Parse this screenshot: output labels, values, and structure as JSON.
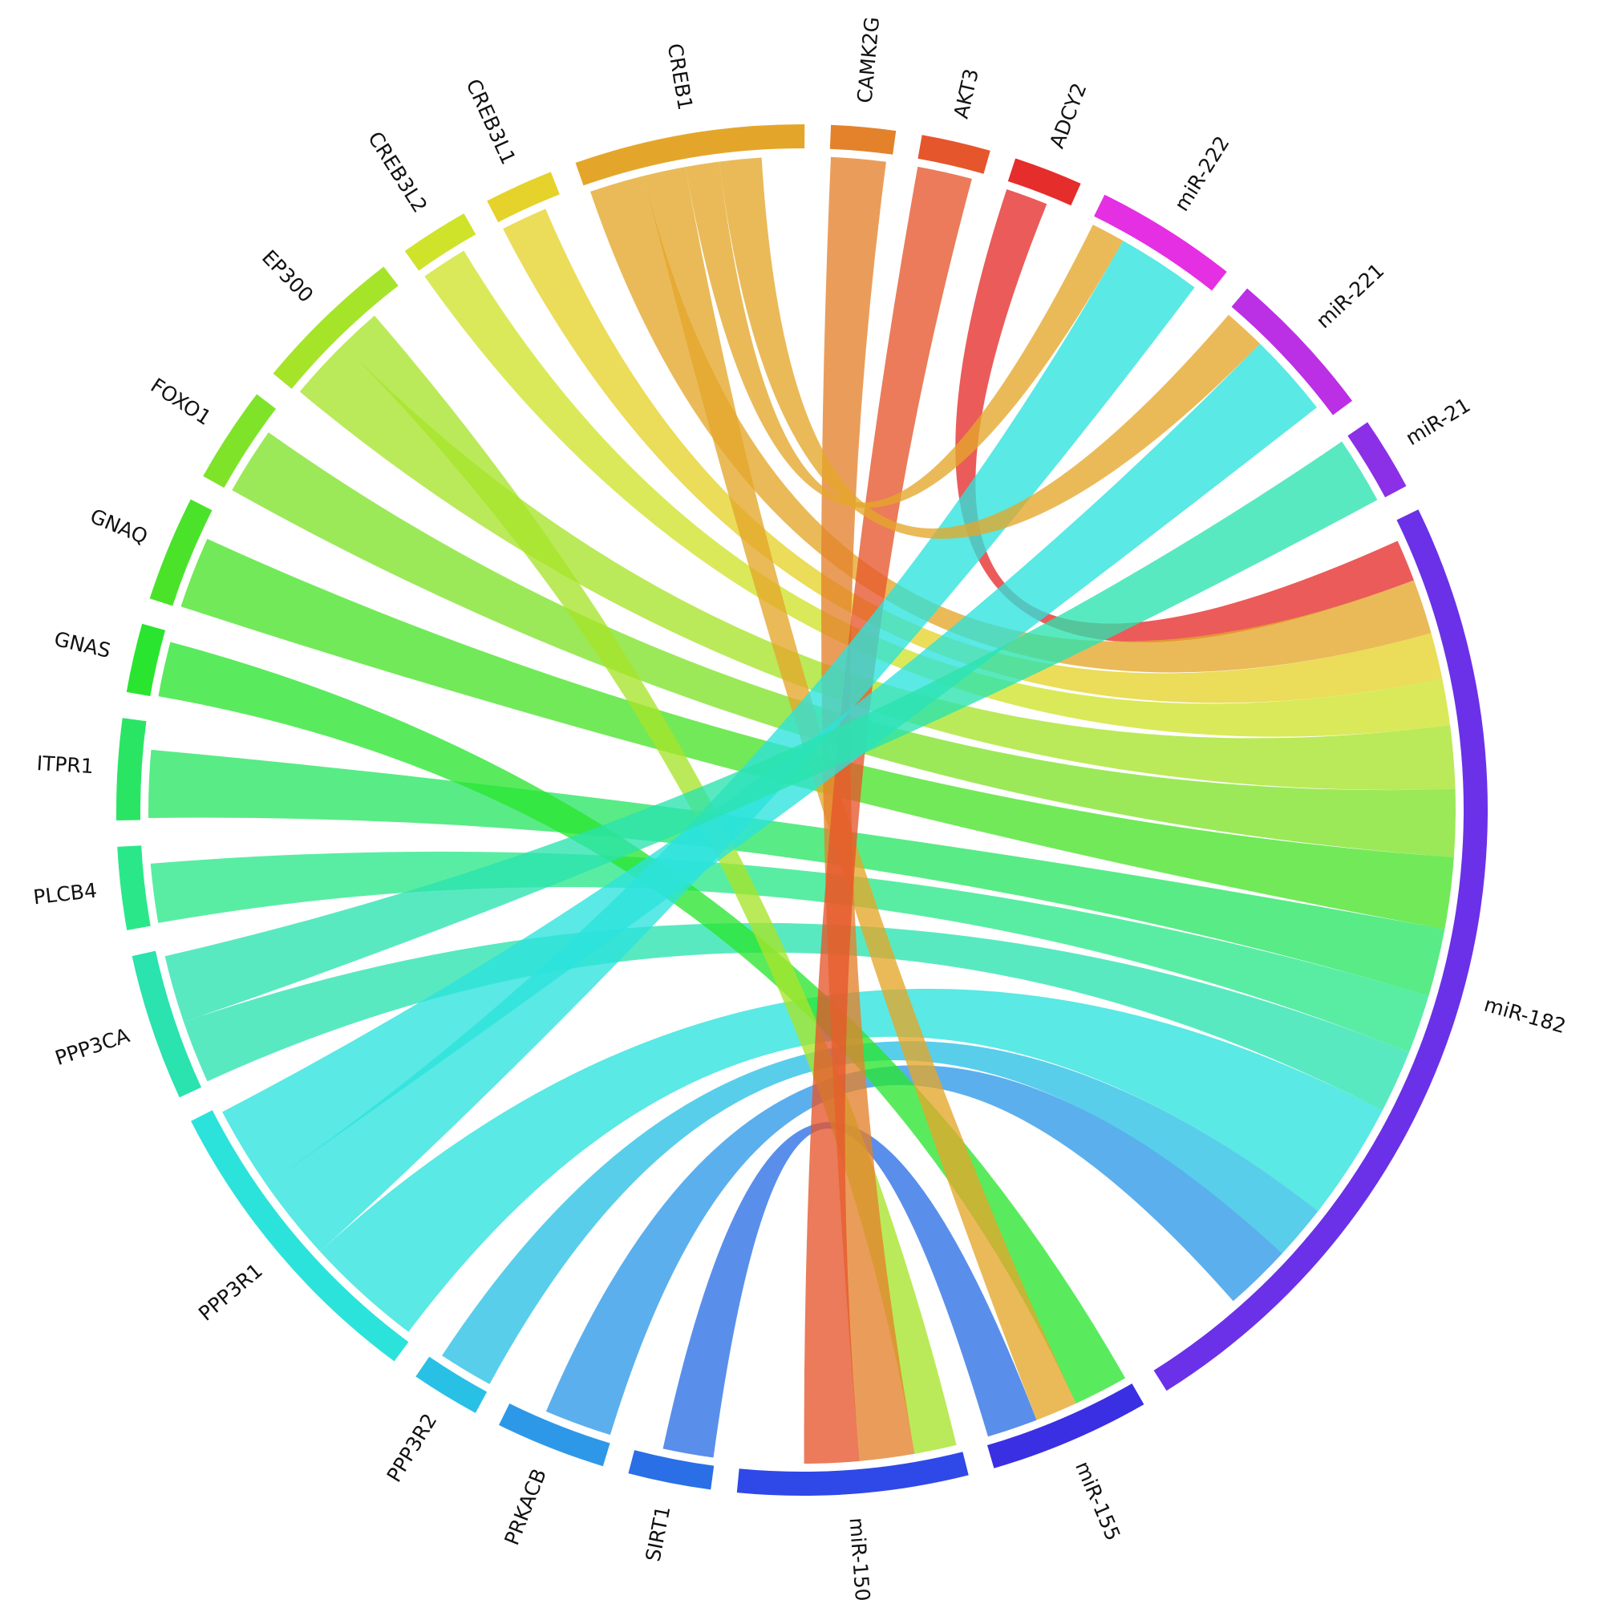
{
  "diagram": {
    "type": "chord",
    "segments": [
      {
        "name": "miR-182",
        "color": "#6a31e8",
        "weight": 21.5
      },
      {
        "name": "miR-155",
        "color": "#3a2fe3",
        "weight": 3.5
      },
      {
        "name": "miR-150",
        "color": "#2f48e8",
        "weight": 5.0
      },
      {
        "name": "SIRT1",
        "color": "#2a6fe6",
        "weight": 1.8
      },
      {
        "name": "PRKACB",
        "color": "#2e98e8",
        "weight": 2.4
      },
      {
        "name": "PPP3R2",
        "color": "#29c0e6",
        "weight": 1.5
      },
      {
        "name": "PPP3R1",
        "color": "#2ce3dc",
        "weight": 6.8
      },
      {
        "name": "PPP3CA",
        "color": "#2ae3ae",
        "weight": 3.2
      },
      {
        "name": "PLCB4",
        "color": "#2ae88a",
        "weight": 1.8
      },
      {
        "name": "ITPR1",
        "color": "#2ae564",
        "weight": 2.2
      },
      {
        "name": "GNAS",
        "color": "#2ae52f",
        "weight": 1.5
      },
      {
        "name": "GNAQ",
        "color": "#4ae32a",
        "weight": 2.3
      },
      {
        "name": "FOXO1",
        "color": "#7fe32a",
        "weight": 2.1
      },
      {
        "name": "EP300",
        "color": "#a6e42a",
        "weight": 3.3
      },
      {
        "name": "CREB3L2",
        "color": "#cfe32a",
        "weight": 1.5
      },
      {
        "name": "CREB3L1",
        "color": "#e5d22a",
        "weight": 1.5
      },
      {
        "name": "CREB1",
        "color": "#e4a62a",
        "weight": 5.0
      },
      {
        "name": "CAMK2G",
        "color": "#e4822c",
        "weight": 1.4
      },
      {
        "name": "AKT3",
        "color": "#e5562c",
        "weight": 1.5
      },
      {
        "name": "ADCY2",
        "color": "#e52d2c",
        "weight": 1.5
      },
      {
        "name": "miR-222",
        "color": "#e52fe3",
        "weight": 3.1
      },
      {
        "name": "miR-221",
        "color": "#bb2fe5",
        "weight": 3.3
      },
      {
        "name": "miR-21",
        "color": "#8b30e6",
        "weight": 1.6
      }
    ],
    "links": [
      {
        "source": "miR-182",
        "target": "ADCY2",
        "value": 1.0
      },
      {
        "source": "miR-182",
        "target": "CREB1",
        "value": 1.3
      },
      {
        "source": "miR-182",
        "target": "CREB3L1",
        "value": 1.1
      },
      {
        "source": "miR-182",
        "target": "CREB3L2",
        "value": 1.1
      },
      {
        "source": "miR-182",
        "target": "EP300",
        "value": 1.5
      },
      {
        "source": "miR-182",
        "target": "FOXO1",
        "value": 1.6
      },
      {
        "source": "miR-182",
        "target": "GNAQ",
        "value": 1.7
      },
      {
        "source": "miR-182",
        "target": "ITPR1",
        "value": 1.6
      },
      {
        "source": "miR-182",
        "target": "PLCB4",
        "value": 1.4
      },
      {
        "source": "miR-182",
        "target": "PPP3CA",
        "value": 1.5
      },
      {
        "source": "miR-182",
        "target": "PPP3R1",
        "value": 2.8
      },
      {
        "source": "miR-182",
        "target": "PPP3R2",
        "value": 1.3
      },
      {
        "source": "miR-182",
        "target": "PRKACB",
        "value": 1.6
      },
      {
        "source": "miR-155",
        "target": "GNAS",
        "value": 1.3
      },
      {
        "source": "miR-155",
        "target": "CREB1",
        "value": 1.0
      },
      {
        "source": "miR-155",
        "target": "SIRT1",
        "value": 1.2
      },
      {
        "source": "miR-150",
        "target": "EP300",
        "value": 1.0
      },
      {
        "source": "miR-150",
        "target": "CAMK2G",
        "value": 1.3
      },
      {
        "source": "miR-150",
        "target": "AKT3",
        "value": 1.3
      },
      {
        "source": "miR-222",
        "target": "CREB1",
        "value": 0.8
      },
      {
        "source": "miR-222",
        "target": "PPP3R1",
        "value": 2.0
      },
      {
        "source": "miR-221",
        "target": "CREB1",
        "value": 1.0
      },
      {
        "source": "miR-221",
        "target": "PPP3R1",
        "value": 2.0
      },
      {
        "source": "miR-21",
        "target": "PPP3CA",
        "value": 1.6
      }
    ]
  }
}
